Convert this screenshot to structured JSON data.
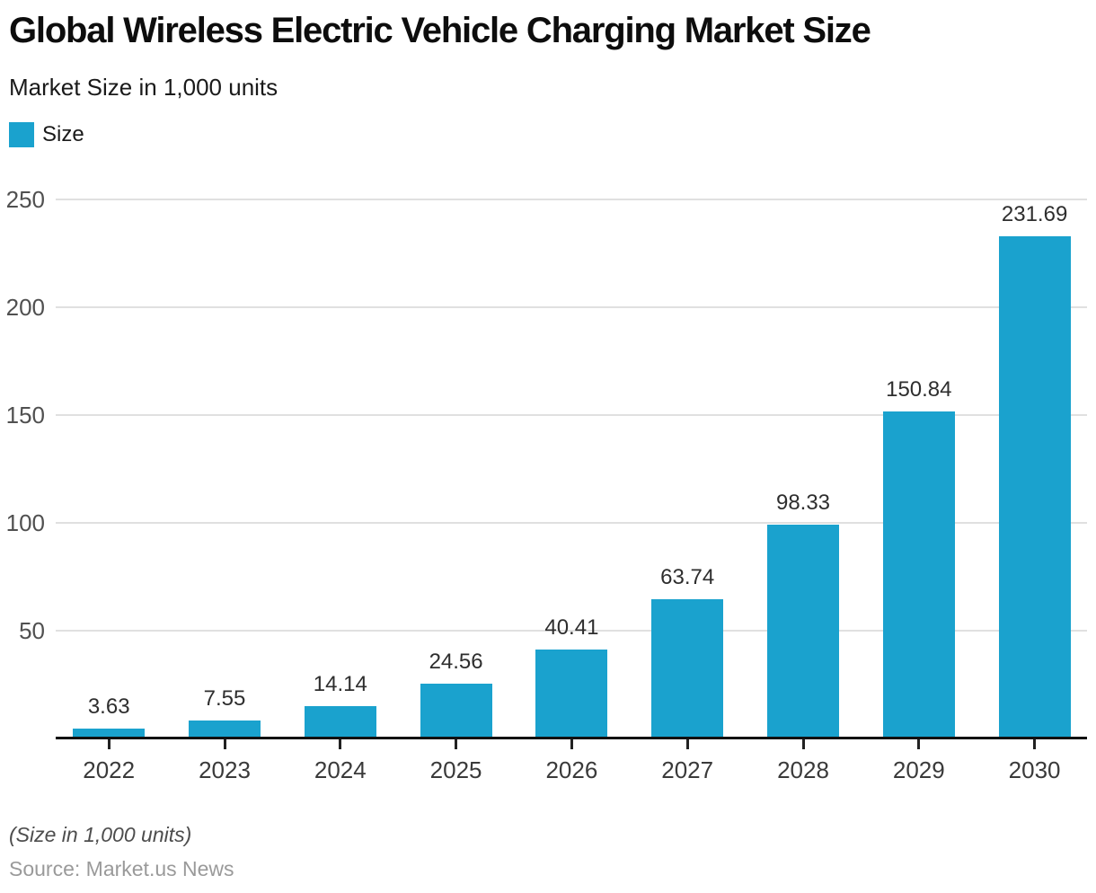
{
  "header": {
    "title": "Global Wireless Electric Vehicle Charging Market Size",
    "subtitle": "Market Size in 1,000 units"
  },
  "legend": {
    "label": "Size",
    "color": "#1aa2ce"
  },
  "chart_data": {
    "type": "bar",
    "title": "Global Wireless Electric Vehicle Charging Market Size",
    "subtitle": "Market Size in 1,000 units",
    "categories": [
      "2022",
      "2023",
      "2024",
      "2025",
      "2026",
      "2027",
      "2028",
      "2029",
      "2030"
    ],
    "series": [
      {
        "name": "Size",
        "values": [
          3.63,
          7.55,
          14.14,
          24.56,
          40.41,
          63.74,
          98.33,
          150.84,
          231.69
        ]
      }
    ],
    "value_labels": [
      "3.63",
      "7.55",
      "14.14",
      "24.56",
      "40.41",
      "63.74",
      "98.33",
      "150.84",
      "231.69"
    ],
    "xlabel": "",
    "ylabel": "",
    "ylim": [
      0,
      250
    ],
    "yticks": [
      50,
      100,
      150,
      200,
      250
    ],
    "grid": true,
    "legend_position": "top-left",
    "bar_color": "#1aa2ce",
    "gridline_color": "#e0e0e0",
    "axis_color": "#111111"
  },
  "footer": {
    "note": "(Size in 1,000 units)",
    "source": "Source: Market.us News"
  }
}
